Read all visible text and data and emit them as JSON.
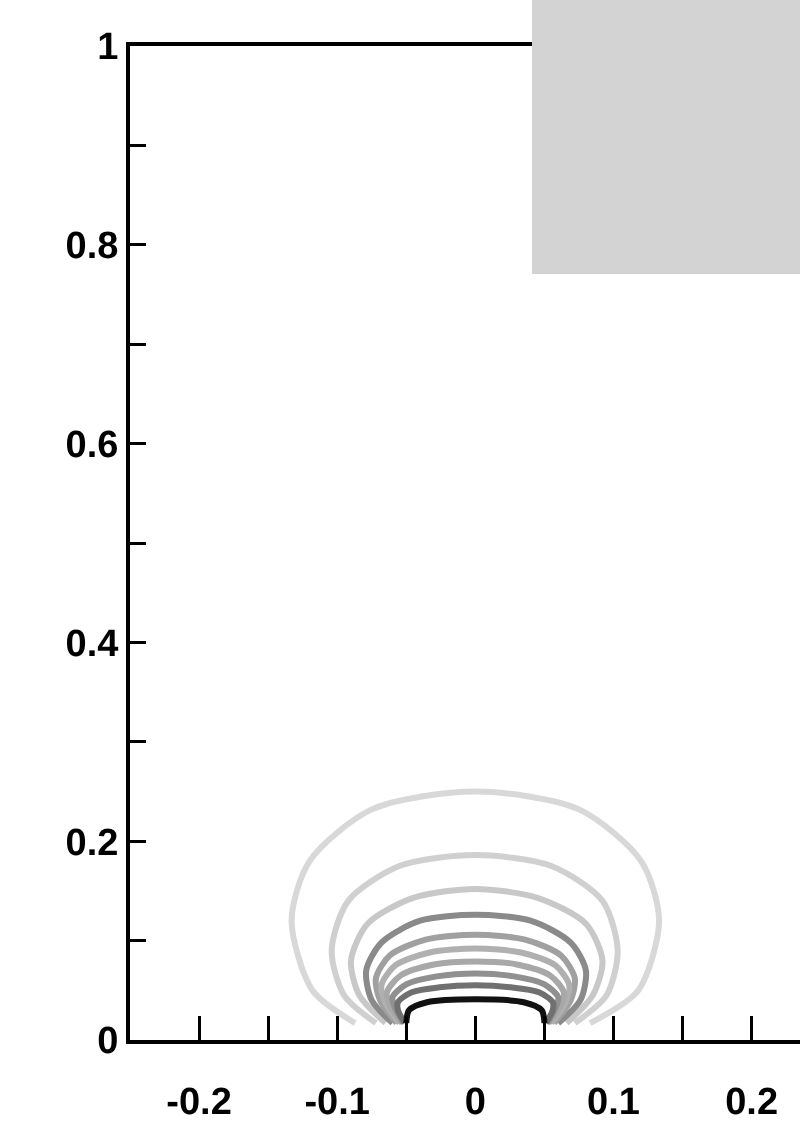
{
  "chart_data": {
    "type": "line",
    "xlim": [
      -0.25,
      0.235
    ],
    "ylim": [
      0,
      1
    ],
    "xticks": [
      -0.2,
      {
        "value": -0.15,
        "label": null
      },
      -0.1,
      {
        "value": -0.05,
        "label": null
      },
      0,
      {
        "value": 0.05,
        "label": null
      },
      0.1,
      {
        "value": 0.15,
        "label": null
      },
      0.2
    ],
    "yticks": [
      0,
      {
        "value": 0.1,
        "label": null
      },
      0.2,
      {
        "value": 0.3,
        "label": null
      },
      0.4,
      {
        "value": 0.5,
        "label": null
      },
      0.6,
      {
        "value": 0.7,
        "label": null
      },
      0.8,
      {
        "value": 0.9,
        "label": null
      },
      1
    ],
    "grid": false,
    "marker": "none",
    "line_style": "solid",
    "series": [
      {
        "color": "#d8d8d8",
        "x": [
          -0.087,
          -0.118,
          -0.133,
          -0.12,
          -0.075,
          0,
          0.075,
          0.12,
          0.133,
          0.118,
          0.083
        ],
        "values": [
          0.017,
          0.05,
          0.12,
          0.18,
          0.232,
          0.25,
          0.232,
          0.18,
          0.12,
          0.05,
          0.017
        ]
      },
      {
        "color": "#d0d0d0",
        "x": [
          -0.072,
          -0.095,
          -0.104,
          -0.092,
          -0.055,
          0,
          0.055,
          0.092,
          0.103,
          0.095,
          0.072
        ],
        "values": [
          0.017,
          0.045,
          0.09,
          0.14,
          0.175,
          0.186,
          0.175,
          0.14,
          0.09,
          0.045,
          0.017
        ]
      },
      {
        "color": "#c8c8c8",
        "x": [
          -0.065,
          -0.084,
          -0.09,
          -0.078,
          -0.045,
          0,
          0.045,
          0.08,
          0.092,
          0.085,
          0.066
        ],
        "values": [
          0.017,
          0.045,
          0.08,
          0.117,
          0.143,
          0.152,
          0.143,
          0.117,
          0.08,
          0.045,
          0.017
        ]
      },
      {
        "color": "#8a8a8a",
        "x": [
          -0.06,
          -0.075,
          -0.079,
          -0.068,
          -0.04,
          0,
          0.04,
          0.069,
          0.08,
          0.076,
          0.06
        ],
        "values": [
          0.017,
          0.04,
          0.07,
          0.098,
          0.12,
          0.126,
          0.12,
          0.098,
          0.07,
          0.04,
          0.017
        ]
      },
      {
        "color": "#a0a0a0",
        "x": [
          -0.057,
          -0.069,
          -0.072,
          -0.062,
          -0.036,
          0,
          0.036,
          0.062,
          0.072,
          0.069,
          0.057
        ],
        "values": [
          0.017,
          0.04,
          0.062,
          0.085,
          0.101,
          0.106,
          0.101,
          0.085,
          0.062,
          0.04,
          0.017
        ]
      },
      {
        "color": "#b0b0b0",
        "x": [
          -0.055,
          -0.065,
          -0.068,
          -0.058,
          -0.033,
          0,
          0.033,
          0.058,
          0.068,
          0.065,
          0.055
        ],
        "values": [
          0.017,
          0.037,
          0.055,
          0.075,
          0.088,
          0.092,
          0.088,
          0.075,
          0.055,
          0.037,
          0.017
        ]
      },
      {
        "color": "#a8a8a8",
        "x": [
          -0.053,
          -0.062,
          -0.064,
          -0.054,
          -0.03,
          0,
          0.03,
          0.054,
          0.064,
          0.062,
          0.053
        ],
        "values": [
          0.017,
          0.035,
          0.048,
          0.065,
          0.076,
          0.079,
          0.076,
          0.065,
          0.048,
          0.035,
          0.017
        ]
      },
      {
        "color": "#909090",
        "x": [
          -0.052,
          -0.058,
          -0.06,
          -0.05,
          -0.028,
          0,
          0.028,
          0.05,
          0.06,
          0.058,
          0.052
        ],
        "values": [
          0.017,
          0.032,
          0.043,
          0.056,
          0.064,
          0.067,
          0.064,
          0.056,
          0.043,
          0.032,
          0.017
        ]
      },
      {
        "color": "#707070",
        "x": [
          -0.051,
          -0.056,
          -0.056,
          -0.046,
          -0.026,
          0,
          0.026,
          0.046,
          0.056,
          0.056,
          0.051
        ],
        "values": [
          0.017,
          0.03,
          0.038,
          0.048,
          0.053,
          0.055,
          0.053,
          0.048,
          0.038,
          0.03,
          0.017
        ]
      },
      {
        "color": "#111111",
        "x": [
          -0.05,
          -0.048,
          -0.035,
          0,
          0.035,
          0.048,
          0.05
        ],
        "values": [
          0.017,
          0.03,
          0.038,
          0.041,
          0.038,
          0.03,
          0.017
        ]
      }
    ]
  }
}
